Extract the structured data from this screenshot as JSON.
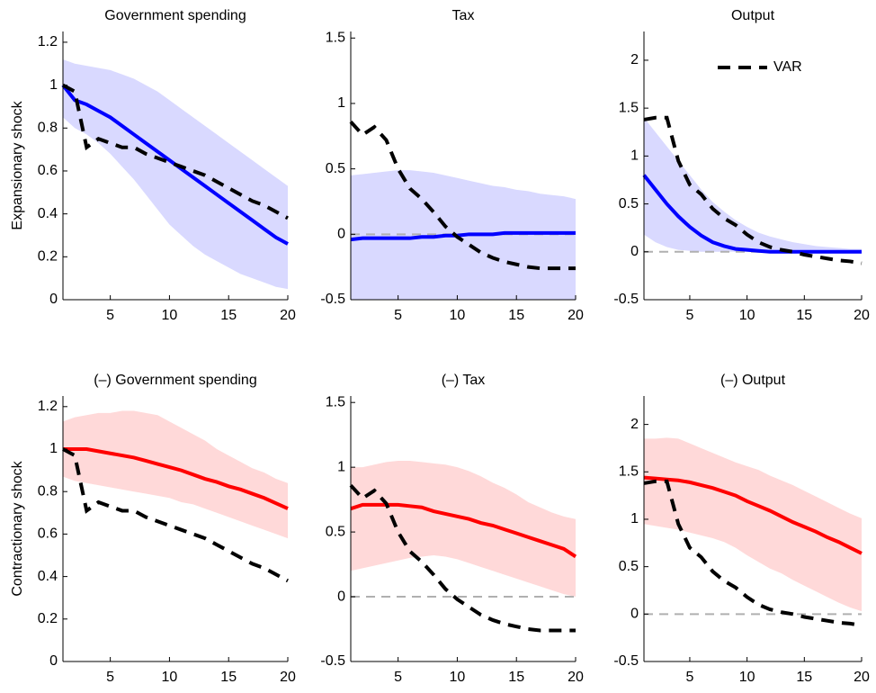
{
  "chart_data": [
    {
      "type": "line",
      "title": "Government spending",
      "ylabel": "Expansionary shock",
      "x": [
        1,
        2,
        3,
        4,
        5,
        6,
        7,
        8,
        9,
        10,
        11,
        12,
        13,
        14,
        15,
        16,
        17,
        18,
        19,
        20
      ],
      "xlim": [
        1,
        20
      ],
      "xticks": [
        5,
        10,
        15,
        20
      ],
      "ylim": [
        0,
        1.25
      ],
      "yticks": [
        0,
        0.2,
        0.4,
        0.6,
        0.8,
        1,
        1.2
      ],
      "zero_line": false,
      "band": {
        "color": "#d9d9ff",
        "upper": [
          1.12,
          1.1,
          1.09,
          1.08,
          1.07,
          1.05,
          1.03,
          1.0,
          0.97,
          0.93,
          0.89,
          0.85,
          0.81,
          0.77,
          0.73,
          0.69,
          0.65,
          0.61,
          0.57,
          0.53
        ],
        "lower": [
          0.85,
          0.8,
          0.77,
          0.73,
          0.68,
          0.62,
          0.56,
          0.49,
          0.42,
          0.35,
          0.3,
          0.25,
          0.21,
          0.18,
          0.15,
          0.12,
          0.1,
          0.08,
          0.06,
          0.05
        ]
      },
      "series": [
        {
          "color": "#0000ff",
          "dash": false,
          "values": [
            1,
            0.93,
            0.91,
            0.88,
            0.85,
            0.81,
            0.77,
            0.73,
            0.69,
            0.65,
            0.61,
            0.57,
            0.53,
            0.49,
            0.45,
            0.41,
            0.37,
            0.33,
            0.29,
            0.26
          ]
        },
        {
          "color": "#000000",
          "dash": true,
          "values": [
            1,
            0.97,
            0.71,
            0.75,
            0.73,
            0.71,
            0.71,
            0.68,
            0.66,
            0.64,
            0.62,
            0.6,
            0.58,
            0.55,
            0.52,
            0.49,
            0.46,
            0.44,
            0.41,
            0.38
          ]
        }
      ]
    },
    {
      "type": "line",
      "title": "Tax",
      "x": [
        1,
        2,
        3,
        4,
        5,
        6,
        7,
        8,
        9,
        10,
        11,
        12,
        13,
        14,
        15,
        16,
        17,
        18,
        19,
        20
      ],
      "xlim": [
        1,
        20
      ],
      "xticks": [
        5,
        10,
        15,
        20
      ],
      "ylim": [
        -0.5,
        1.55
      ],
      "yticks": [
        -0.5,
        0,
        0.5,
        1,
        1.5
      ],
      "zero_line": true,
      "band": {
        "color": "#d9d9ff",
        "upper": [
          0.45,
          0.46,
          0.47,
          0.48,
          0.49,
          0.49,
          0.48,
          0.47,
          0.45,
          0.43,
          0.41,
          0.39,
          0.37,
          0.36,
          0.34,
          0.33,
          0.31,
          0.3,
          0.29,
          0.27
        ],
        "lower": [
          -0.5,
          -0.5,
          -0.5,
          -0.5,
          -0.5,
          -0.5,
          -0.5,
          -0.5,
          -0.5,
          -0.5,
          -0.5,
          -0.5,
          -0.5,
          -0.5,
          -0.5,
          -0.5,
          -0.5,
          -0.5,
          -0.5,
          -0.5
        ]
      },
      "series": [
        {
          "color": "#0000ff",
          "dash": false,
          "values": [
            -0.04,
            -0.03,
            -0.03,
            -0.03,
            -0.03,
            -0.03,
            -0.02,
            -0.02,
            -0.01,
            -0.01,
            0,
            0,
            0,
            0.01,
            0.01,
            0.01,
            0.01,
            0.01,
            0.01,
            0.01
          ]
        },
        {
          "color": "#000000",
          "dash": true,
          "values": [
            0.86,
            0.76,
            0.82,
            0.72,
            0.5,
            0.35,
            0.27,
            0.17,
            0.06,
            -0.02,
            -0.08,
            -0.14,
            -0.18,
            -0.21,
            -0.23,
            -0.25,
            -0.26,
            -0.26,
            -0.26,
            -0.26
          ]
        }
      ]
    },
    {
      "type": "line",
      "title": "Output",
      "legend": "upper right",
      "x": [
        1,
        2,
        3,
        4,
        5,
        6,
        7,
        8,
        9,
        10,
        11,
        12,
        13,
        14,
        15,
        16,
        17,
        18,
        19,
        20
      ],
      "xlim": [
        1,
        20
      ],
      "xticks": [
        5,
        10,
        15,
        20
      ],
      "ylim": [
        -0.5,
        2.3
      ],
      "yticks": [
        -0.5,
        0,
        0.5,
        1,
        1.5,
        2
      ],
      "zero_line": true,
      "band": {
        "color": "#d9d9ff",
        "upper": [
          1.4,
          1.25,
          1.1,
          0.95,
          0.8,
          0.65,
          0.52,
          0.42,
          0.33,
          0.26,
          0.2,
          0.16,
          0.13,
          0.1,
          0.08,
          0.06,
          0.05,
          0.04,
          0.03,
          0.03
        ],
        "lower": [
          0.18,
          0.1,
          0.05,
          0.02,
          0.01,
          0,
          0,
          0,
          0,
          0,
          0,
          0,
          0,
          0,
          0,
          0,
          0,
          0,
          0,
          0
        ]
      },
      "series": [
        {
          "color": "#0000ff",
          "dash": false,
          "values": [
            0.8,
            0.65,
            0.5,
            0.37,
            0.26,
            0.17,
            0.1,
            0.06,
            0.03,
            0.02,
            0.01,
            0,
            0,
            0,
            0,
            0,
            0,
            0,
            0,
            0
          ]
        },
        {
          "name": "VAR",
          "color": "#000000",
          "dash": true,
          "values": [
            1.38,
            1.4,
            1.4,
            0.95,
            0.7,
            0.6,
            0.45,
            0.35,
            0.28,
            0.18,
            0.1,
            0.05,
            0.02,
            0,
            -0.03,
            -0.05,
            -0.07,
            -0.09,
            -0.1,
            -0.12
          ]
        }
      ]
    },
    {
      "type": "line",
      "title": "(–) Government spending",
      "ylabel": "Contractionary shock",
      "x": [
        1,
        2,
        3,
        4,
        5,
        6,
        7,
        8,
        9,
        10,
        11,
        12,
        13,
        14,
        15,
        16,
        17,
        18,
        19,
        20
      ],
      "xlim": [
        1,
        20
      ],
      "xticks": [
        5,
        10,
        15,
        20
      ],
      "ylim": [
        0,
        1.25
      ],
      "yticks": [
        0,
        0.2,
        0.4,
        0.6,
        0.8,
        1,
        1.2
      ],
      "zero_line": false,
      "band": {
        "color": "#ffd9d9",
        "upper": [
          1.13,
          1.15,
          1.16,
          1.17,
          1.17,
          1.18,
          1.18,
          1.17,
          1.16,
          1.13,
          1.1,
          1.07,
          1.04,
          1.0,
          0.97,
          0.94,
          0.91,
          0.89,
          0.86,
          0.84
        ],
        "lower": [
          0.87,
          0.85,
          0.84,
          0.83,
          0.82,
          0.81,
          0.8,
          0.79,
          0.78,
          0.77,
          0.75,
          0.74,
          0.72,
          0.7,
          0.68,
          0.66,
          0.64,
          0.62,
          0.6,
          0.58
        ]
      },
      "series": [
        {
          "color": "#ff0000",
          "dash": false,
          "values": [
            1,
            1,
            1,
            0.99,
            0.98,
            0.97,
            0.96,
            0.945,
            0.93,
            0.915,
            0.9,
            0.88,
            0.86,
            0.845,
            0.825,
            0.81,
            0.79,
            0.77,
            0.745,
            0.72
          ]
        },
        {
          "color": "#000000",
          "dash": true,
          "values": [
            1,
            0.97,
            0.71,
            0.75,
            0.73,
            0.71,
            0.71,
            0.68,
            0.66,
            0.64,
            0.62,
            0.6,
            0.58,
            0.55,
            0.52,
            0.49,
            0.46,
            0.44,
            0.41,
            0.38
          ]
        }
      ]
    },
    {
      "type": "line",
      "title": "(–) Tax",
      "x": [
        1,
        2,
        3,
        4,
        5,
        6,
        7,
        8,
        9,
        10,
        11,
        12,
        13,
        14,
        15,
        16,
        17,
        18,
        19,
        20
      ],
      "xlim": [
        1,
        20
      ],
      "xticks": [
        5,
        10,
        15,
        20
      ],
      "ylim": [
        -0.5,
        1.55
      ],
      "yticks": [
        -0.5,
        0,
        0.5,
        1,
        1.5
      ],
      "zero_line": true,
      "band": {
        "color": "#ffd9d9",
        "upper": [
          1.0,
          1.0,
          1.02,
          1.04,
          1.05,
          1.05,
          1.04,
          1.03,
          1.02,
          1.0,
          0.97,
          0.93,
          0.88,
          0.84,
          0.79,
          0.73,
          0.69,
          0.65,
          0.62,
          0.6
        ],
        "lower": [
          0.2,
          0.22,
          0.24,
          0.26,
          0.28,
          0.3,
          0.31,
          0.32,
          0.31,
          0.29,
          0.26,
          0.23,
          0.2,
          0.17,
          0.14,
          0.11,
          0.08,
          0.05,
          0.02,
          0
        ]
      },
      "series": [
        {
          "color": "#ff0000",
          "dash": false,
          "values": [
            0.68,
            0.71,
            0.71,
            0.71,
            0.71,
            0.7,
            0.69,
            0.66,
            0.64,
            0.62,
            0.6,
            0.57,
            0.55,
            0.52,
            0.49,
            0.46,
            0.43,
            0.4,
            0.37,
            0.31
          ]
        },
        {
          "color": "#000000",
          "dash": true,
          "values": [
            0.86,
            0.76,
            0.82,
            0.72,
            0.5,
            0.35,
            0.27,
            0.17,
            0.06,
            -0.02,
            -0.08,
            -0.14,
            -0.18,
            -0.21,
            -0.23,
            -0.25,
            -0.26,
            -0.26,
            -0.26,
            -0.26
          ]
        }
      ]
    },
    {
      "type": "line",
      "title": "(–) Output",
      "x": [
        1,
        2,
        3,
        4,
        5,
        6,
        7,
        8,
        9,
        10,
        11,
        12,
        13,
        14,
        15,
        16,
        17,
        18,
        19,
        20
      ],
      "xlim": [
        1,
        20
      ],
      "xticks": [
        5,
        10,
        15,
        20
      ],
      "ylim": [
        -0.5,
        2.3
      ],
      "yticks": [
        -0.5,
        0,
        0.5,
        1,
        1.5,
        2
      ],
      "zero_line": true,
      "band": {
        "color": "#ffd9d9",
        "upper": [
          1.85,
          1.85,
          1.86,
          1.85,
          1.8,
          1.75,
          1.7,
          1.65,
          1.6,
          1.56,
          1.52,
          1.46,
          1.41,
          1.36,
          1.3,
          1.24,
          1.18,
          1.12,
          1.06,
          1.01
        ],
        "lower": [
          0.95,
          0.93,
          0.91,
          0.89,
          0.86,
          0.83,
          0.8,
          0.76,
          0.7,
          0.62,
          0.55,
          0.48,
          0.43,
          0.36,
          0.3,
          0.24,
          0.18,
          0.12,
          0.07,
          0.03
        ]
      },
      "series": [
        {
          "color": "#ff0000",
          "dash": false,
          "values": [
            1.44,
            1.43,
            1.42,
            1.41,
            1.39,
            1.36,
            1.33,
            1.29,
            1.25,
            1.19,
            1.14,
            1.09,
            1.03,
            0.97,
            0.92,
            0.87,
            0.81,
            0.76,
            0.7,
            0.64
          ]
        },
        {
          "color": "#000000",
          "dash": true,
          "values": [
            1.38,
            1.4,
            1.4,
            0.95,
            0.7,
            0.6,
            0.45,
            0.35,
            0.28,
            0.18,
            0.1,
            0.05,
            0.02,
            0,
            -0.03,
            -0.05,
            -0.07,
            -0.09,
            -0.1,
            -0.12
          ]
        }
      ]
    }
  ]
}
